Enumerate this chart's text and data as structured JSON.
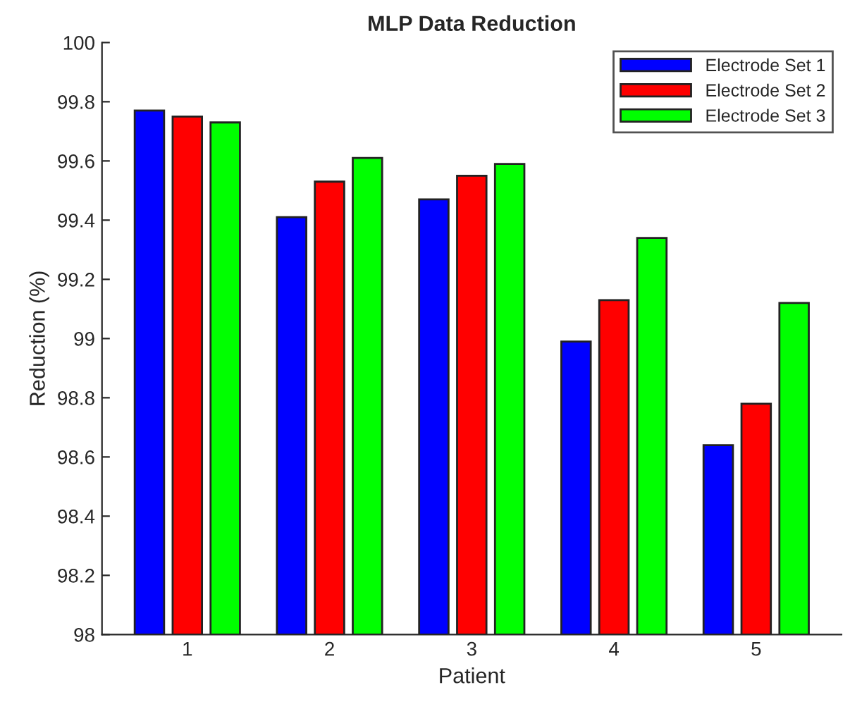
{
  "chart_data": {
    "type": "bar",
    "title": "MLP Data Reduction",
    "xlabel": "Patient",
    "ylabel": "Reduction (%)",
    "categories": [
      "1",
      "2",
      "3",
      "4",
      "5"
    ],
    "series": [
      {
        "name": "Electrode Set 1",
        "color": "#0000ff",
        "values": [
          99.77,
          99.41,
          99.47,
          98.99,
          98.64
        ]
      },
      {
        "name": "Electrode Set 2",
        "color": "#ff0000",
        "values": [
          99.75,
          99.53,
          99.55,
          99.13,
          98.78
        ]
      },
      {
        "name": "Electrode Set 3",
        "color": "#00ff00",
        "values": [
          99.73,
          99.61,
          99.59,
          99.34,
          99.12
        ]
      }
    ],
    "ylim": [
      98,
      100
    ],
    "yticks": [
      98,
      98.2,
      98.4,
      98.6,
      98.8,
      99,
      99.2,
      99.4,
      99.6,
      99.8,
      100
    ],
    "legend": "top right",
    "grid": false
  }
}
